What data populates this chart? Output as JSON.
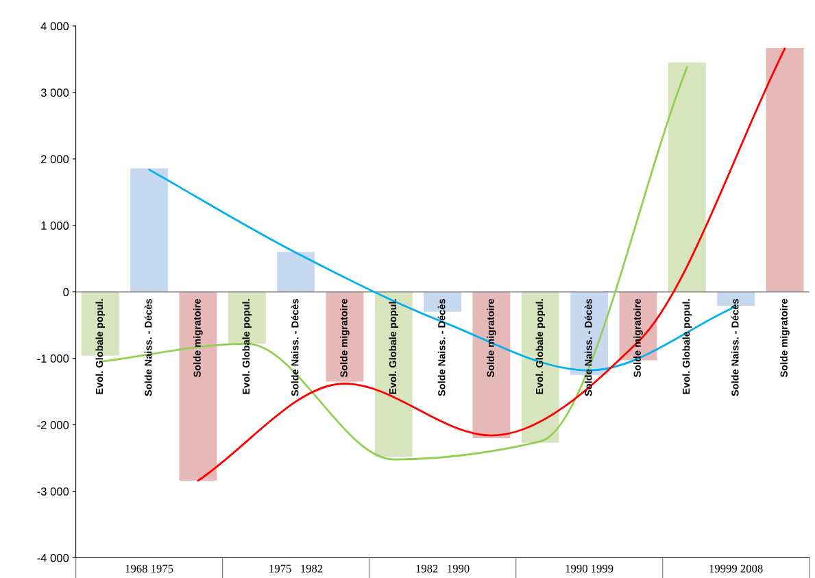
{
  "chart_data": {
    "type": "bar",
    "categories": [
      "Evol. Globale popul.",
      "Solde Naiss. - Décès",
      "Solde migratoire",
      "Evol. Globale popul.",
      "Solde Naiss. - Décès",
      "Solde migratoire",
      "Evol. Globale popul.",
      "Solde Naiss. - Décès",
      "Solde migratoire",
      "Evol. Globale popul.",
      "Solde Naiss. - Décès",
      "Solde migratoire",
      "Evol. Globale popul.",
      "Solde Naiss. - Décès",
      "Solde migratoire"
    ],
    "series": [
      {
        "type": "bar",
        "colors": [
          "#d7e4bd",
          "#c6d9f1",
          "#e6b9b8",
          "#d7e4bd",
          "#c6d9f1",
          "#e6b9b8",
          "#d7e4bd",
          "#c6d9f1",
          "#e6b9b8",
          "#d7e4bd",
          "#c6d9f1",
          "#e6b9b8",
          "#d7e4bd",
          "#c6d9f1",
          "#e6b9b8"
        ],
        "values": [
          -960,
          1860,
          -2840,
          -780,
          600,
          -1350,
          -2480,
          -300,
          -2200,
          -2270,
          -1250,
          -1030,
          3450,
          -210,
          3670
        ]
      },
      {
        "type": "line",
        "color": "#92d050",
        "values": [
          -1050,
          null,
          null,
          -780,
          null,
          null,
          -2520,
          null,
          null,
          -2250,
          null,
          null,
          3380,
          null,
          null
        ]
      },
      {
        "type": "line",
        "color": "#00b0f0",
        "values": [
          null,
          1840,
          null,
          null,
          590,
          null,
          null,
          -450,
          null,
          null,
          -1180,
          null,
          null,
          -220,
          null
        ]
      },
      {
        "type": "line",
        "color": "#ff0000",
        "values": [
          null,
          null,
          -2840,
          null,
          null,
          -1380,
          null,
          null,
          -2160,
          null,
          null,
          -750,
          null,
          null,
          3660
        ]
      }
    ],
    "ylim": [
      -4000,
      4000
    ],
    "yticks": [
      {
        "value": -4000,
        "label": "-4 000"
      },
      {
        "value": -3000,
        "label": "-3 000"
      },
      {
        "value": -2000,
        "label": "-2 000"
      },
      {
        "value": -1000,
        "label": "-1 000"
      },
      0,
      {
        "value": 1000,
        "label": "1 000"
      },
      {
        "value": 2000,
        "label": "2 000"
      },
      {
        "value": 3000,
        "label": "3 000"
      },
      {
        "value": 4000,
        "label": "4 000"
      }
    ],
    "annotations": [
      "1968 1975",
      "1975   1982",
      "1982   1990",
      "1990 1999",
      "19999 2008"
    ],
    "grid": false,
    "legend": false
  }
}
